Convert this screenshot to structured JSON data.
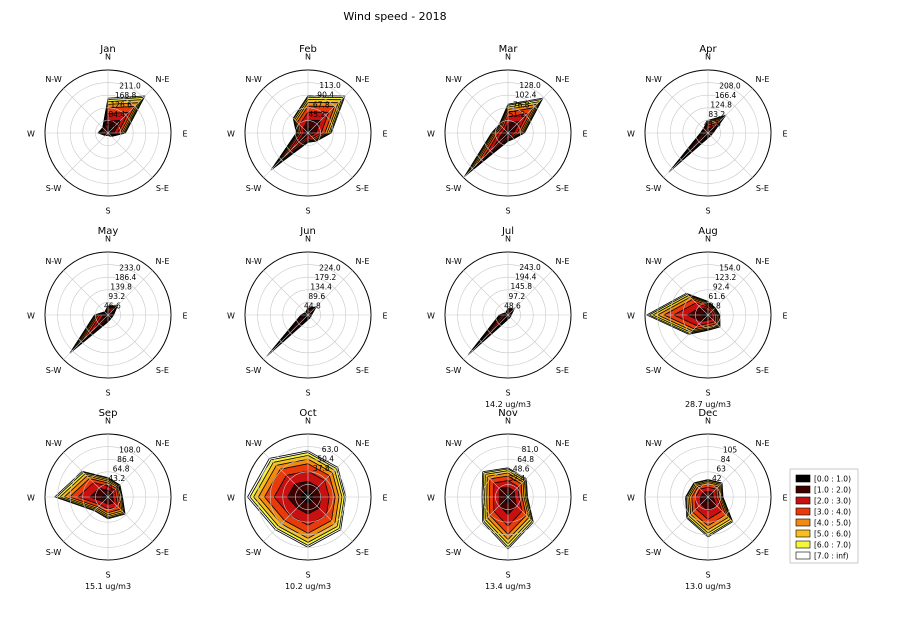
{
  "figure_title": "Wind speed - 2018",
  "compass_labels": [
    "N",
    "N-E",
    "E",
    "S-E",
    "S",
    "S-W",
    "W",
    "N-W"
  ],
  "colors": [
    "#000000",
    "#3d0000",
    "#c81010",
    "#e83a0a",
    "#f28a10",
    "#f7c020",
    "#f5f53a",
    "#ffffff"
  ],
  "legend": {
    "placement": "right",
    "entries": [
      "[0.0 : 1.0)",
      "[1.0 : 2.0)",
      "[2.0 : 3.0)",
      "[3.0 : 4.0)",
      "[4.0 : 5.0)",
      "[5.0 : 6.0)",
      "[6.0 : 7.0)",
      "[7.0 : inf)"
    ]
  },
  "chart_data": [
    {
      "type": "windrose",
      "title": "Jan",
      "caption": "",
      "rmax": 253,
      "radial_ticks": [
        "211.0",
        "168.8",
        "126.6",
        "84.4",
        "42.2"
      ],
      "totals": [
        140,
        210,
        70,
        20,
        10,
        15,
        40,
        30
      ],
      "dominant": [
        0.12,
        0.55,
        0.2,
        0.05,
        0.02,
        0.01,
        0.01,
        0.04
      ]
    },
    {
      "type": "windrose",
      "title": "Feb",
      "caption": "",
      "rmax": 135,
      "radial_ticks": [
        "113.0",
        "90.4",
        "67.8",
        "45.2"
      ],
      "totals": [
        80,
        112,
        50,
        25,
        20,
        112,
        25,
        45
      ],
      "dominant": [
        0.1,
        0.35,
        0.3,
        0.1,
        0.05,
        0.05,
        0.03,
        0.02
      ]
    },
    {
      "type": "windrose",
      "title": "Mar",
      "caption": "",
      "rmax": 153,
      "radial_ticks": [
        "128.0",
        "102.4",
        "76.8",
        "51.2"
      ],
      "totals": [
        70,
        120,
        40,
        20,
        20,
        150,
        40,
        30
      ],
      "dominant": [
        0.1,
        0.25,
        0.25,
        0.15,
        0.1,
        0.07,
        0.05,
        0.03
      ]
    },
    {
      "type": "windrose",
      "title": "Apr",
      "caption": "",
      "rmax": 250,
      "radial_ticks": [
        "208.0",
        "166.4",
        "124.8",
        "83.2",
        "41.6"
      ],
      "totals": [
        50,
        100,
        20,
        15,
        20,
        220,
        30,
        25
      ],
      "dominant": [
        0.1,
        0.2,
        0.25,
        0.15,
        0.12,
        0.08,
        0.06,
        0.04
      ]
    },
    {
      "type": "windrose",
      "title": "May",
      "caption": "",
      "rmax": 280,
      "radial_ticks": [
        "233.0",
        "186.4",
        "139.8",
        "93.2",
        "46.6"
      ],
      "totals": [
        40,
        60,
        25,
        20,
        30,
        240,
        60,
        20
      ],
      "dominant": [
        0.1,
        0.2,
        0.2,
        0.18,
        0.12,
        0.1,
        0.06,
        0.04
      ]
    },
    {
      "type": "windrose",
      "title": "Jun",
      "caption": "",
      "rmax": 270,
      "radial_ticks": [
        "224.0",
        "179.2",
        "134.4",
        "89.6",
        "44.8"
      ],
      "totals": [
        30,
        50,
        15,
        15,
        20,
        250,
        30,
        15
      ],
      "dominant": [
        0.08,
        0.15,
        0.2,
        0.18,
        0.15,
        0.12,
        0.08,
        0.04
      ]
    },
    {
      "type": "windrose",
      "title": "Jul",
      "caption": "14.2 ug/m3",
      "rmax": 290,
      "radial_ticks": [
        "243.0",
        "194.4",
        "145.8",
        "97.2",
        "48.6"
      ],
      "totals": [
        30,
        40,
        15,
        15,
        20,
        260,
        40,
        15
      ],
      "dominant": [
        0.08,
        0.15,
        0.2,
        0.18,
        0.15,
        0.12,
        0.08,
        0.04
      ]
    },
    {
      "type": "windrose",
      "title": "Aug",
      "caption": "28.7 ug/m3",
      "rmax": 185,
      "radial_ticks": [
        "154.0",
        "123.2",
        "92.4",
        "61.6",
        "30.8"
      ],
      "totals": [
        40,
        30,
        35,
        50,
        45,
        80,
        180,
        90
      ],
      "dominant": [
        0.05,
        0.2,
        0.25,
        0.18,
        0.12,
        0.1,
        0.06,
        0.04
      ]
    },
    {
      "type": "windrose",
      "title": "Sep",
      "caption": "15.1 ug/m3",
      "rmax": 130,
      "radial_ticks": [
        "108.0",
        "86.4",
        "64.8",
        "43.2",
        "21.6"
      ],
      "totals": [
        40,
        35,
        30,
        50,
        45,
        40,
        110,
        75
      ],
      "dominant": [
        0.05,
        0.15,
        0.25,
        0.2,
        0.15,
        0.1,
        0.06,
        0.04
      ]
    },
    {
      "type": "windrose",
      "title": "Oct",
      "caption": "10.2 ug/m3",
      "rmax": 75,
      "radial_ticks": [
        "63.0",
        "50.4",
        "37.8"
      ],
      "totals": [
        55,
        50,
        45,
        55,
        60,
        55,
        72,
        65
      ],
      "dominant": [
        0.05,
        0.15,
        0.25,
        0.2,
        0.15,
        0.1,
        0.06,
        0.04
      ]
    },
    {
      "type": "windrose",
      "title": "Nov",
      "caption": "13.4 ug/m3",
      "rmax": 97,
      "radial_ticks": [
        "81.0",
        "64.8",
        "48.6",
        "32.4"
      ],
      "totals": [
        45,
        40,
        30,
        55,
        80,
        55,
        40,
        55
      ],
      "dominant": [
        0.04,
        0.1,
        0.3,
        0.25,
        0.15,
        0.08,
        0.05,
        0.03
      ]
    },
    {
      "type": "windrose",
      "title": "Dec",
      "caption": "13.0 ug/m3",
      "rmax": 126,
      "radial_ticks": [
        "105",
        "84",
        "63",
        "42"
      ],
      "totals": [
        35,
        40,
        30,
        70,
        80,
        60,
        45,
        40
      ],
      "dominant": [
        0.05,
        0.15,
        0.3,
        0.25,
        0.12,
        0.07,
        0.04,
        0.02
      ]
    }
  ]
}
